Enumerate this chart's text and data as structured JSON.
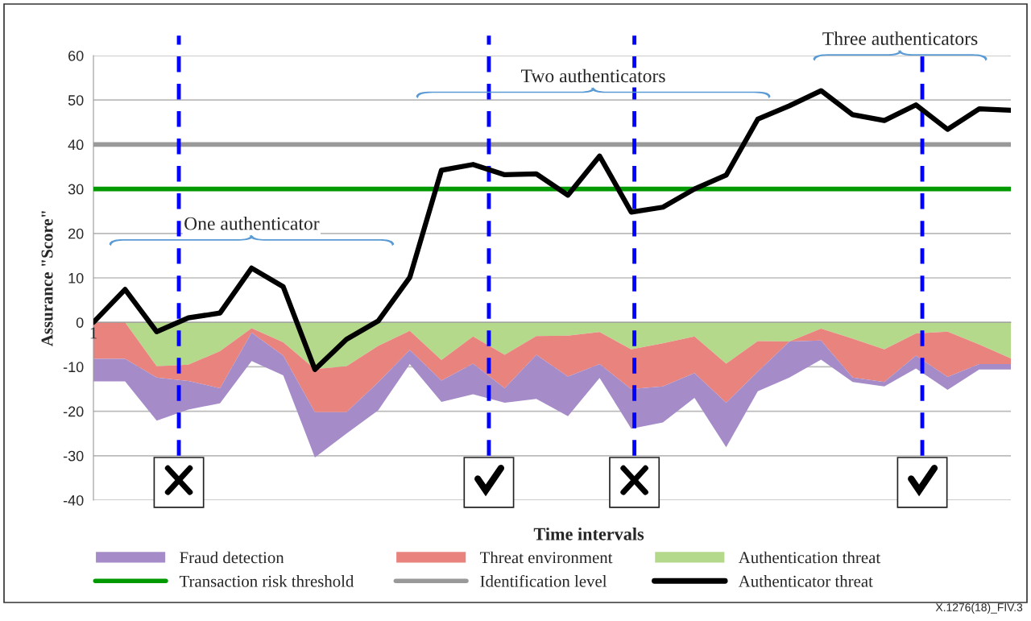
{
  "chart_data": {
    "type": "area",
    "stacked": true,
    "categories": [
      "1",
      null,
      null,
      null,
      null,
      null,
      null,
      null,
      null,
      null,
      null,
      null,
      null,
      null,
      null,
      null,
      null,
      null,
      null,
      null,
      null,
      null,
      null,
      null,
      null,
      null,
      null,
      null,
      null,
      null
    ],
    "ylim": [
      -40,
      60
    ],
    "yticks": [
      -40,
      -30,
      -20,
      -10,
      0,
      10,
      20,
      30,
      40,
      50,
      60
    ],
    "xlabel": "Time intervals",
    "ylabel": "Assurance \"Score\"",
    "grid": "y",
    "legend": "bottom",
    "series": [
      {
        "name": "Authentication threat",
        "color": "#b5d98a",
        "values": [
          0,
          0,
          -9.9,
          -9.5,
          -6.5,
          -1.3,
          -4.5,
          -10.5,
          -9.9,
          -5.3,
          -1.9,
          -8.5,
          -3.2,
          -7.3,
          -3.1,
          -3.0,
          -2.2,
          -6.1,
          -4.7,
          -3.2,
          -9.3,
          -4.2,
          -4.3,
          -1.4,
          -3.7,
          -6.1,
          -2.5,
          -2.1,
          -5.0,
          -8.1
        ]
      },
      {
        "name": "Threat environment",
        "color": "#e8837e",
        "values": [
          -8.2,
          -8.2,
          -2.5,
          -3.7,
          -8.3,
          -1.0,
          -3.0,
          -9.7,
          -10.3,
          -8.2,
          -4.3,
          -4.6,
          -6.1,
          -7.5,
          -4.2,
          -9.2,
          -7.2,
          -8.9,
          -9.7,
          -8.2,
          -8.8,
          -6.9,
          0,
          -2.7,
          -8.7,
          -7.3,
          -5.0,
          -10.2,
          -4.4,
          -1.3
        ]
      },
      {
        "name": "Fraud detection",
        "color": "#a58cc8",
        "values": [
          -5.1,
          -5.1,
          -9.7,
          -6.4,
          -3.4,
          -6.4,
          -4.4,
          -10.2,
          -4.8,
          -6.3,
          -3.2,
          -4.8,
          -6.9,
          -3.3,
          -9.9,
          -8.9,
          -3.1,
          -8.9,
          -8.1,
          -5.6,
          -10.0,
          -4.4,
          -8.1,
          -4.3,
          -1.0,
          -1.0,
          -2.9,
          -2.9,
          -1.2,
          -1.2
        ]
      },
      {
        "name": "Authenticator threat",
        "type": "line",
        "color": "#000000",
        "values": [
          0,
          7.4,
          -2.1,
          1.0,
          2.1,
          12.2,
          8.0,
          -10.6,
          -3.8,
          0.3,
          10.1,
          34.2,
          35.5,
          33.2,
          33.4,
          28.6,
          37.4,
          24.8,
          25.9,
          30.0,
          33.1,
          45.7,
          48.7,
          52.1,
          46.7,
          45.4,
          48.9,
          43.4,
          48.0,
          47.7
        ]
      }
    ],
    "ref_lines": [
      {
        "axis": "y",
        "value": 30,
        "label": "Transaction risk threshold",
        "color": "#009900",
        "line_style": "solid"
      },
      {
        "axis": "y",
        "value": 40,
        "label": "Identification level",
        "color": "#999999",
        "line_style": "solid"
      }
    ],
    "annotations": [
      "One authenticator",
      "Two authenticators",
      "Three authenticators",
      "X.1276(18)_FIV.3"
    ]
  }
}
